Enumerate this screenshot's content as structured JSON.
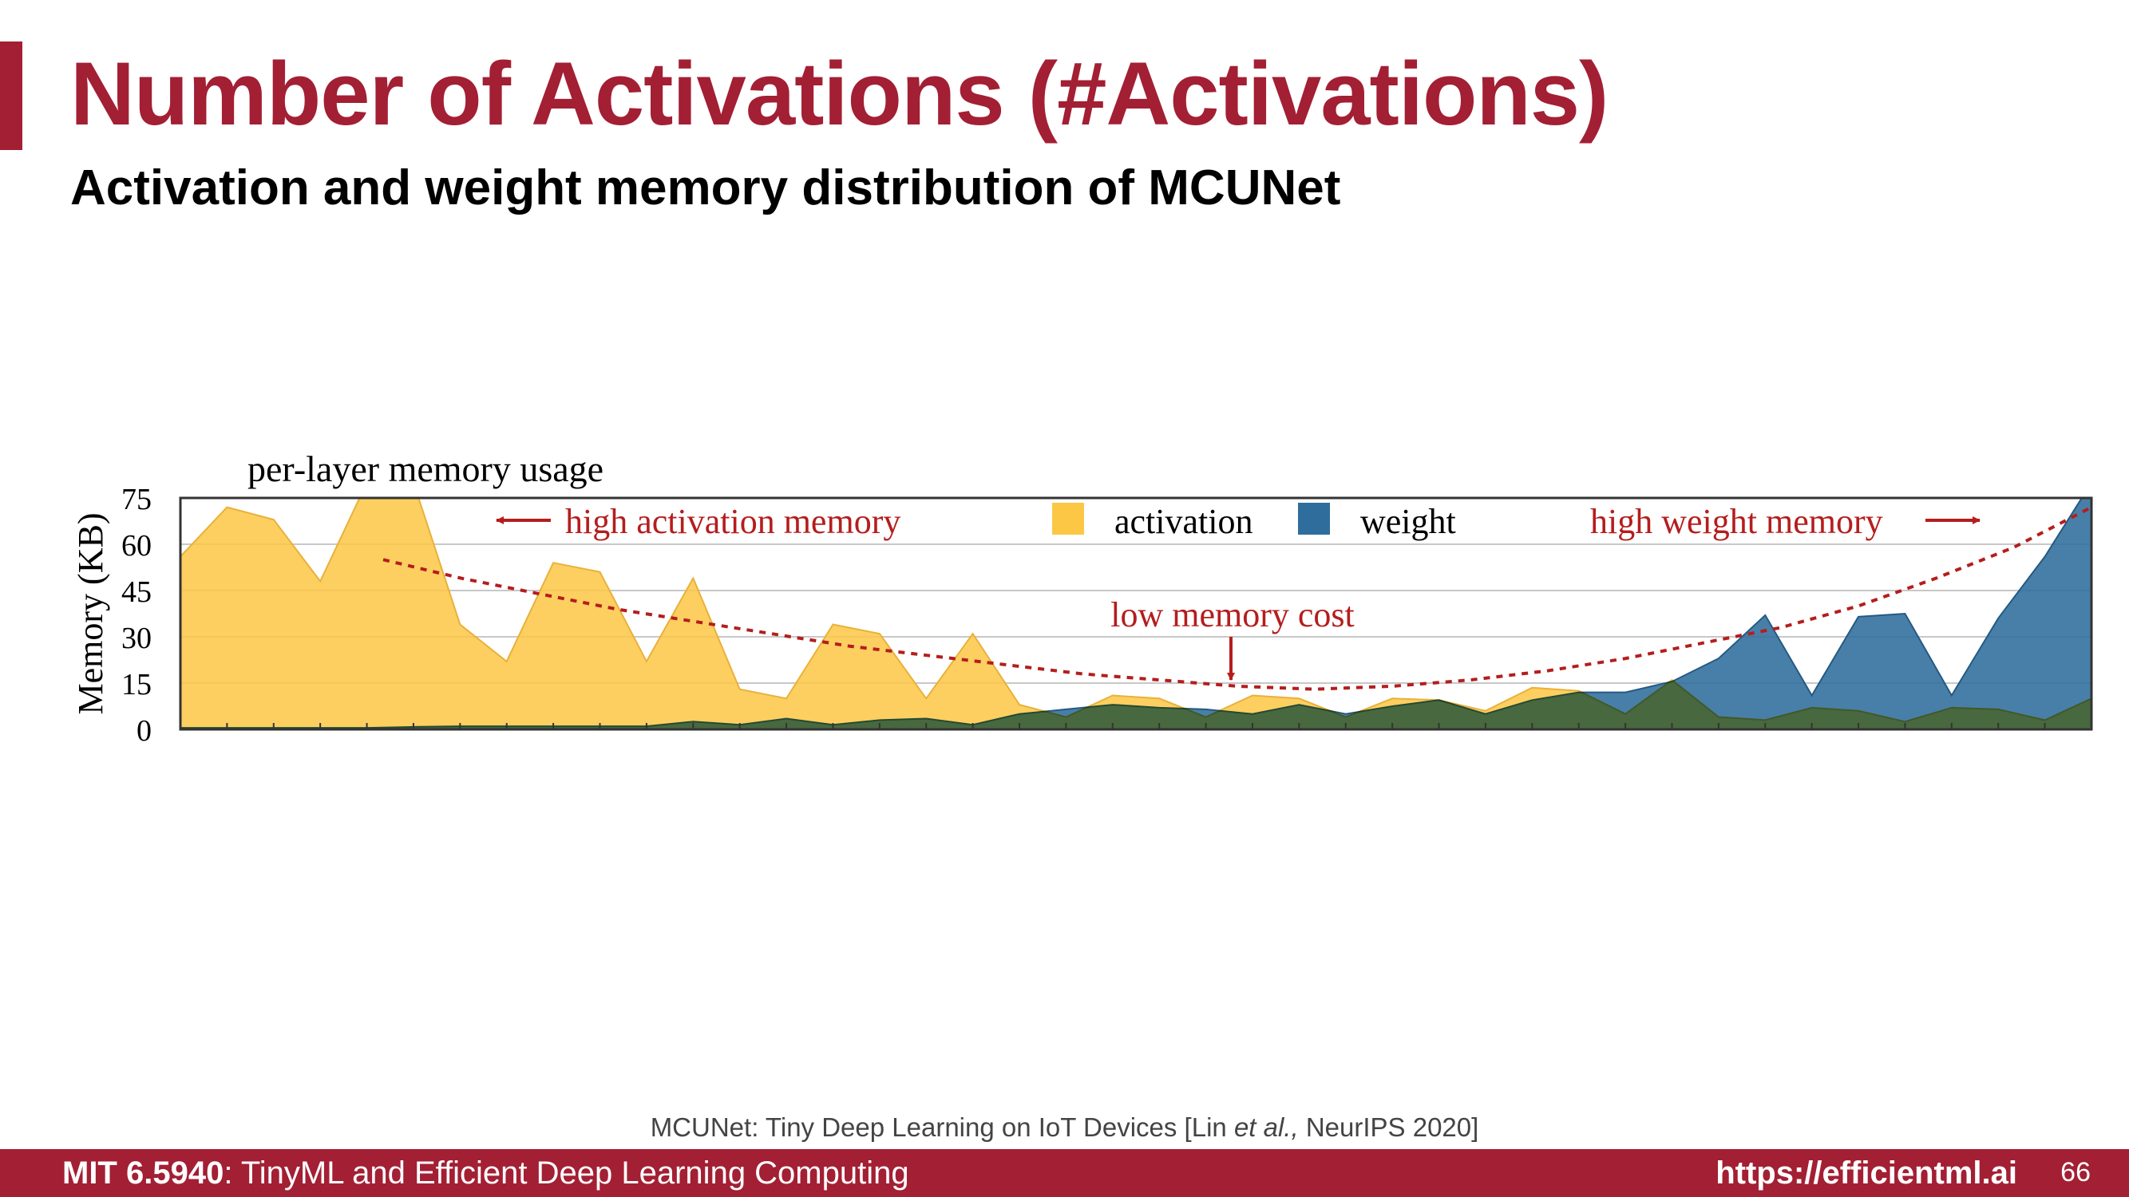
{
  "slide": {
    "title": "Number of Activations (#Activations)",
    "subtitle": "Activation and weight memory distribution of MCUNet",
    "citation_prefix": "MCUNet: Tiny Deep Learning on IoT Devices [Lin ",
    "citation_italic": "et al.,",
    "citation_suffix": " NeurIPS 2020]",
    "footer_course": "MIT 6.5940",
    "footer_course_name": ": TinyML and Efficient Deep Learning Computing",
    "footer_url": "https://efficientml.ai",
    "page_number": "66"
  },
  "colors": {
    "brand": "#a31f34",
    "activation": "#fcc744",
    "weight": "#2f6d9c",
    "annotation": "#b51d1d"
  },
  "chart_data": {
    "type": "area",
    "title": "per-layer memory usage",
    "ylabel": "Memory (KB)",
    "xlabel": "",
    "ylim": [
      0,
      75
    ],
    "yticks": [
      "75",
      "60",
      "45",
      "30",
      "15",
      "0"
    ],
    "ytick_values": [
      75,
      60,
      45,
      30,
      15,
      0
    ],
    "grid": true,
    "legend_position": "top-center",
    "x": [
      0,
      1,
      2,
      3,
      4,
      5,
      6,
      7,
      8,
      9,
      10,
      11,
      12,
      13,
      14,
      15,
      16,
      17,
      18,
      19,
      20,
      21,
      22,
      23,
      24,
      25,
      26,
      27,
      28,
      29,
      30,
      31,
      32,
      33,
      34,
      35,
      36,
      37,
      38,
      39,
      40,
      41
    ],
    "series": [
      {
        "name": "activation",
        "color": "#fcc744",
        "values": [
          56,
          72,
          68,
          48,
          80,
          80,
          34,
          22,
          54,
          51,
          22,
          49,
          13,
          10,
          34,
          31,
          10,
          31,
          8,
          4,
          11,
          10,
          4,
          11,
          10,
          4,
          10,
          9.5,
          6,
          13.5,
          12.5,
          5,
          16,
          4,
          3,
          7,
          6,
          2.5,
          7,
          6.5,
          3,
          10
        ]
      },
      {
        "name": "weight",
        "color": "#2f6d9c",
        "values": [
          0.5,
          0.5,
          0.5,
          0.5,
          0.5,
          0.8,
          1,
          1,
          1,
          1,
          1,
          2.5,
          1.5,
          3.5,
          1.5,
          3,
          3.5,
          1.5,
          5,
          6.5,
          8,
          7,
          6.5,
          5,
          8,
          5,
          7.5,
          9.5,
          5,
          9.5,
          12,
          12,
          15.5,
          23,
          37,
          11,
          36.5,
          37.5,
          11,
          36,
          56,
          80
        ]
      }
    ],
    "annotations": {
      "high_activation": "high activation memory",
      "high_weight": "high weight memory",
      "low_cost": "low memory cost",
      "trend_curve": [
        55,
        49,
        44,
        39,
        35,
        31,
        27,
        24,
        21,
        18,
        16,
        14,
        13,
        14,
        16,
        19,
        23,
        28,
        33,
        40,
        49,
        59,
        72
      ]
    }
  }
}
